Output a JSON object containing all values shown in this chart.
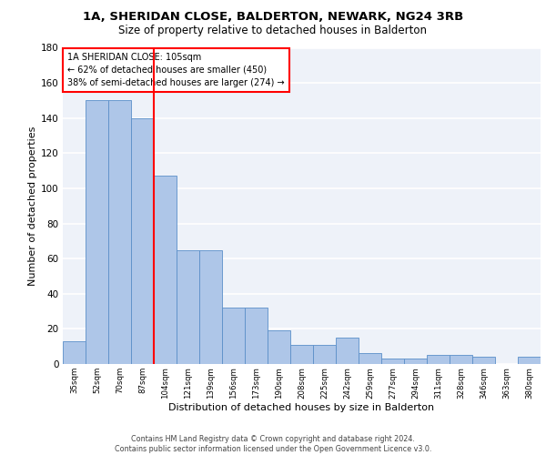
{
  "title1": "1A, SHERIDAN CLOSE, BALDERTON, NEWARK, NG24 3RB",
  "title2": "Size of property relative to detached houses in Balderton",
  "xlabel": "Distribution of detached houses by size in Balderton",
  "ylabel": "Number of detached properties",
  "categories": [
    "35sqm",
    "52sqm",
    "70sqm",
    "87sqm",
    "104sqm",
    "121sqm",
    "139sqm",
    "156sqm",
    "173sqm",
    "190sqm",
    "208sqm",
    "225sqm",
    "242sqm",
    "259sqm",
    "277sqm",
    "294sqm",
    "311sqm",
    "328sqm",
    "346sqm",
    "363sqm",
    "380sqm"
  ],
  "values": [
    13,
    150,
    150,
    140,
    107,
    65,
    65,
    32,
    32,
    19,
    11,
    11,
    15,
    6,
    3,
    3,
    5,
    5,
    4,
    0,
    4
  ],
  "bar_color": "#aec6e8",
  "bar_edge_color": "#5b8fc9",
  "vline_color": "red",
  "annotation_text": "1A SHERIDAN CLOSE: 105sqm\n← 62% of detached houses are smaller (450)\n38% of semi-detached houses are larger (274) →",
  "annotation_box_color": "white",
  "annotation_box_edge_color": "red",
  "ylim": [
    0,
    180
  ],
  "yticks": [
    0,
    20,
    40,
    60,
    80,
    100,
    120,
    140,
    160,
    180
  ],
  "background_color": "#eef2f9",
  "grid_color": "white",
  "footer": "Contains HM Land Registry data © Crown copyright and database right 2024.\nContains public sector information licensed under the Open Government Licence v3.0."
}
